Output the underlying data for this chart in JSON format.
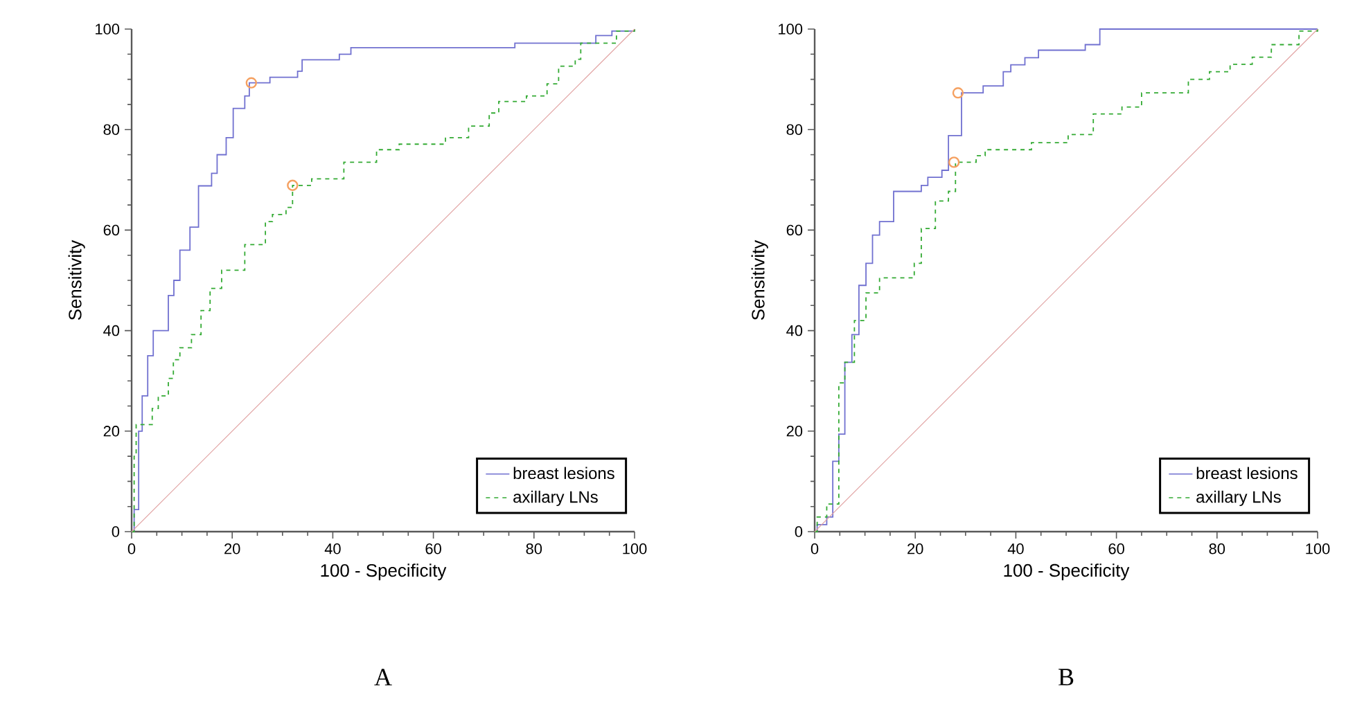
{
  "chart_data": [
    {
      "type": "step",
      "title": "A",
      "xlabel": "100 - Specificity",
      "ylabel": "Sensitivity",
      "xlim": [
        0,
        100
      ],
      "ylim": [
        0,
        100
      ],
      "xticks": [
        0,
        20,
        40,
        60,
        80,
        100
      ],
      "yticks": [
        0,
        20,
        40,
        60,
        80,
        100
      ],
      "legend": "bottom right",
      "series": [
        {
          "name": "breast lesions",
          "color": "#7070d0",
          "line_style": "solid",
          "x": [
            0,
            0.5,
            1.4,
            2.1,
            3.2,
            4.3,
            7.3,
            8.4,
            9.6,
            11.6,
            13.3,
            15.9,
            17,
            18.8,
            20.2,
            22.5,
            23.4,
            27.5,
            33,
            33.9,
            41.3,
            43.6,
            76.2,
            92.3,
            95.5,
            100
          ],
          "values": [
            0,
            4.4,
            20,
            27,
            35,
            40,
            47,
            50,
            56,
            60.6,
            68.8,
            71.3,
            75,
            78.4,
            84.2,
            86.7,
            89.3,
            90.4,
            91.6,
            93.9,
            95,
            96.3,
            97.2,
            98.7,
            99.6,
            100
          ]
        },
        {
          "name": "axillary LNs",
          "color": "#33aa33",
          "line_style": "dashed",
          "x": [
            0,
            0.5,
            0.9,
            4.1,
            5.3,
            7.3,
            8.3,
            9.6,
            11.9,
            13.8,
            15.6,
            17.9,
            22.5,
            26.6,
            28,
            30.7,
            32,
            35.8,
            42.2,
            48.7,
            53.2,
            62.4,
            67,
            71.1,
            73,
            78.5,
            82.6,
            84.9,
            88.2,
            89.3,
            96.4,
            100
          ],
          "values": [
            0,
            15,
            21.3,
            24.5,
            27,
            30.5,
            34.2,
            36.6,
            39.2,
            44,
            48.4,
            52,
            57.1,
            61.7,
            63.1,
            64.5,
            68.9,
            70.2,
            73.5,
            76,
            77.1,
            78.4,
            80.7,
            83.3,
            85.6,
            86.7,
            89.1,
            92.6,
            94,
            97.2,
            99.6,
            100
          ]
        },
        {
          "type": "line",
          "color": "#e0a0a0",
          "line_style": "solid",
          "x": [
            0,
            100
          ],
          "values": [
            0,
            100
          ]
        },
        {
          "type": "scatter",
          "color": "#f5a060",
          "marker": "circle",
          "x": [
            23.8,
            32
          ],
          "values": [
            89.3,
            68.9
          ]
        }
      ]
    },
    {
      "type": "step",
      "title": "B",
      "xlabel": "100 - Specificity",
      "ylabel": "Sensitivity",
      "xlim": [
        0,
        100
      ],
      "ylim": [
        0,
        100
      ],
      "xticks": [
        0,
        20,
        40,
        60,
        80,
        100
      ],
      "yticks": [
        0,
        20,
        40,
        60,
        80,
        100
      ],
      "legend": "bottom right",
      "series": [
        {
          "name": "breast lesions",
          "color": "#7070d0",
          "line_style": "solid",
          "x": [
            0,
            0.5,
            2.4,
            3.6,
            4.8,
            6,
            7.4,
            8.8,
            10.2,
            11.5,
            12.9,
            15.7,
            21.2,
            22.5,
            25.3,
            26.6,
            29.2,
            33.5,
            37.5,
            39,
            41.8,
            44.5,
            53.8,
            56.7,
            100
          ],
          "values": [
            0,
            1.4,
            2.9,
            14,
            19.4,
            33.7,
            39.2,
            49,
            53.4,
            59,
            61.7,
            67.7,
            68.9,
            70.5,
            71.9,
            78.8,
            87.3,
            88.7,
            91.5,
            92.9,
            94.3,
            95.8,
            96.9,
            100,
            100
          ]
        },
        {
          "name": "axillary LNs",
          "color": "#33aa33",
          "line_style": "dashed",
          "x": [
            0,
            0.5,
            2.4,
            4.8,
            6,
            7.9,
            10.2,
            12.9,
            19.8,
            21.2,
            24,
            26.6,
            28,
            32.1,
            33.9,
            43.1,
            50.4,
            55.4,
            61.1,
            65,
            74.3,
            78.5,
            82.6,
            87,
            90.8,
            96.3,
            100
          ],
          "values": [
            0,
            2.9,
            5.5,
            29.6,
            33.7,
            42,
            47.5,
            50.5,
            53.4,
            60.3,
            65.8,
            67.7,
            73.5,
            74.8,
            76,
            77.4,
            79,
            83.1,
            84.5,
            87.3,
            90,
            91.5,
            93,
            94.4,
            96.9,
            99.6,
            100
          ]
        },
        {
          "type": "line",
          "color": "#e0a0a0",
          "line_style": "solid",
          "x": [
            0,
            100
          ],
          "values": [
            0,
            100
          ]
        },
        {
          "type": "scatter",
          "color": "#f5a060",
          "marker": "circle",
          "x": [
            28.5,
            27.7
          ],
          "values": [
            87.3,
            73.5
          ]
        }
      ]
    }
  ]
}
